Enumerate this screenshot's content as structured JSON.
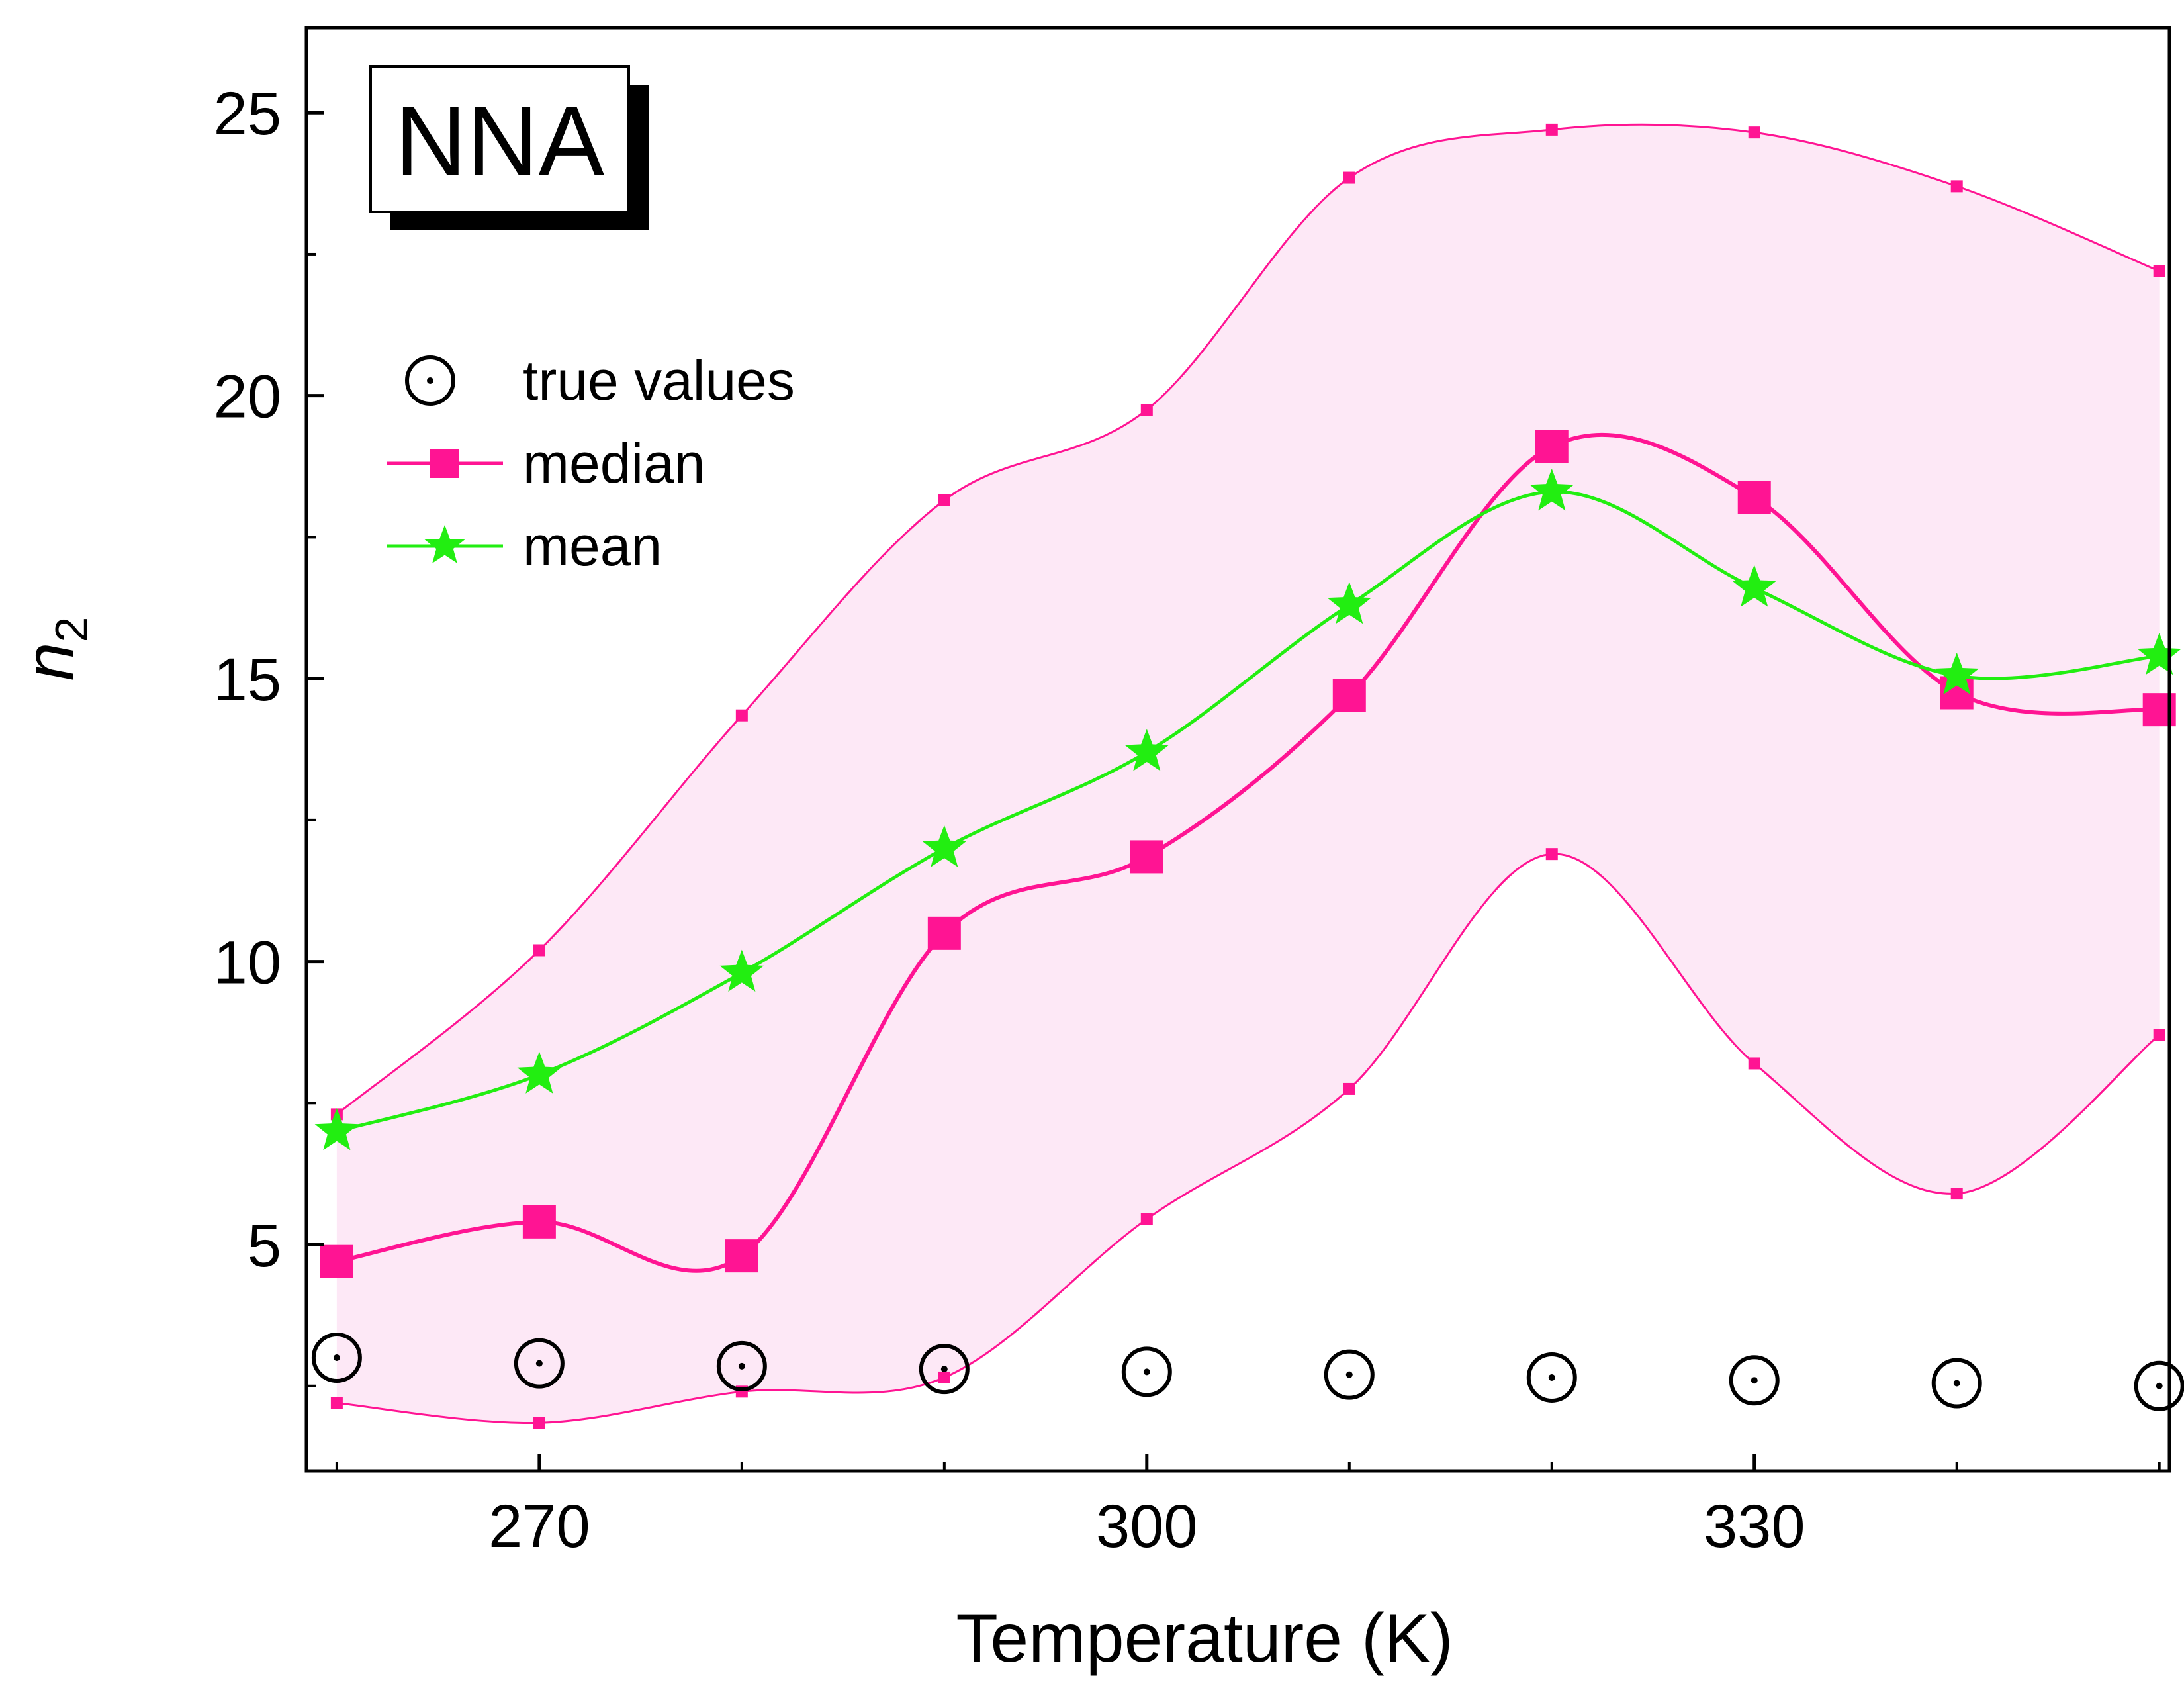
{
  "chart_data": {
    "type": "line",
    "title": "",
    "inset_label": "NNA",
    "xlabel": "Temperature (K)",
    "ylabel": "n",
    "ylabel_subscript": "2",
    "xlim": [
      258.5,
      350.5
    ],
    "ylim": [
      1,
      26.5
    ],
    "xticks": [
      270,
      300,
      330
    ],
    "yticks": [
      5,
      10,
      15,
      20,
      25
    ],
    "legend_position": "upper-left",
    "grid": false,
    "x": [
      260,
      270,
      280,
      290,
      300,
      310,
      320,
      330,
      340,
      350
    ],
    "series": [
      {
        "name": "true values",
        "color": "#000000",
        "marker": "circle-dot",
        "line": "none",
        "values": [
          3.0,
          2.9,
          2.85,
          2.8,
          2.75,
          2.7,
          2.65,
          2.6,
          2.55,
          2.5
        ]
      },
      {
        "name": "median",
        "color": "#ff1493",
        "marker": "square",
        "line": "solid",
        "values": [
          4.7,
          5.4,
          4.8,
          10.5,
          11.85,
          14.7,
          19.1,
          18.2,
          14.75,
          14.45
        ]
      },
      {
        "name": "mean",
        "color": "#22ee11",
        "marker": "star",
        "line": "solid",
        "values": [
          7.0,
          8.0,
          9.8,
          12.0,
          13.7,
          16.3,
          18.3,
          16.6,
          15.05,
          15.4
        ]
      }
    ],
    "band": {
      "color": "#fde8f6",
      "edge_color": "#ff1493",
      "upper": [
        7.3,
        10.2,
        14.35,
        18.15,
        19.75,
        23.85,
        24.7,
        24.65,
        23.7,
        22.2
      ],
      "lower": [
        2.2,
        1.85,
        2.4,
        2.65,
        5.45,
        7.75,
        11.9,
        8.2,
        5.9,
        8.7
      ]
    }
  }
}
